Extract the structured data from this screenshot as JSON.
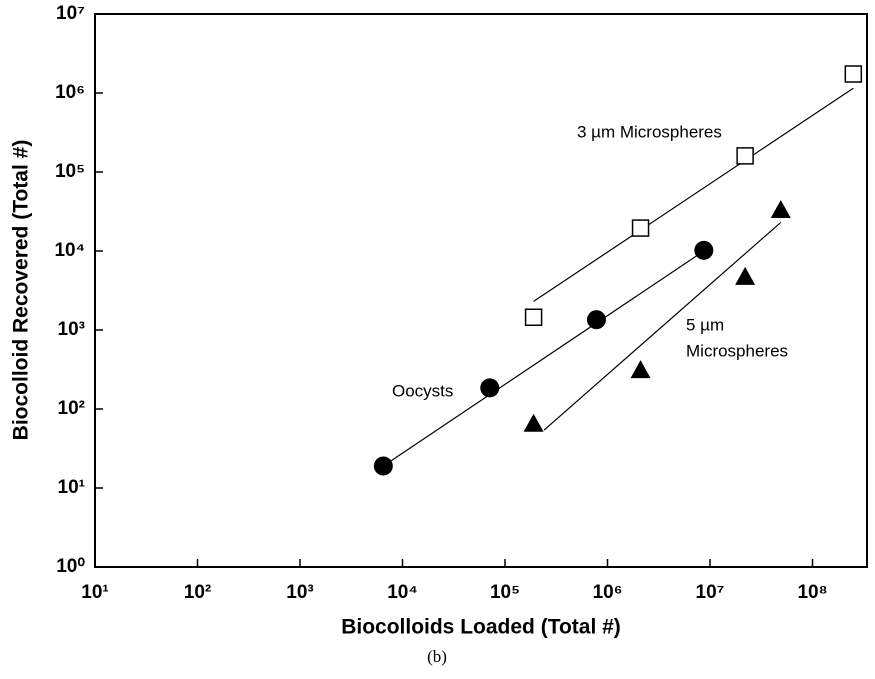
{
  "chart_data": {
    "type": "scatter",
    "xscale": "log",
    "yscale": "log",
    "x_label": "Biocolloids Loaded (Total #)",
    "y_label": "Biocolloid Recovered (Total #)",
    "caption": "(b)",
    "xlim": [
      10,
      340000000
    ],
    "ylim": [
      1,
      10000000
    ],
    "xticks": [
      {
        "value": 10,
        "label": "10¹"
      },
      {
        "value": 100,
        "label": "10²"
      },
      {
        "value": 1000,
        "label": "10³"
      },
      {
        "value": 10000,
        "label": "10⁴"
      },
      {
        "value": 100000,
        "label": "10⁵"
      },
      {
        "value": 1000000,
        "label": "10⁶"
      },
      {
        "value": 10000000,
        "label": "10⁷"
      },
      {
        "value": 100000000,
        "label": "10⁸"
      }
    ],
    "yticks": [
      {
        "value": 1,
        "label": "10⁰"
      },
      {
        "value": 10,
        "label": "10¹"
      },
      {
        "value": 100,
        "label": "10²"
      },
      {
        "value": 1000,
        "label": "10³"
      },
      {
        "value": 10000,
        "label": "10⁴"
      },
      {
        "value": 100000,
        "label": "10⁵"
      },
      {
        "value": 1000000,
        "label": "10⁶"
      },
      {
        "value": 10000000,
        "label": "10⁷"
      }
    ],
    "annotations": [
      "3 µm Microspheres",
      "Oocysts",
      "5 µm",
      "Microspheres"
    ],
    "series": [
      {
        "marker": "square",
        "color": "#000000",
        "x": [
          190000,
          2100000,
          22000000,
          250000000
        ],
        "values": [
          1450,
          19500,
          160000,
          1740000
        ],
        "fit": {
          "x": [
            190000,
            250000000
          ],
          "values": [
            2300,
            1150000
          ]
        }
      },
      {
        "marker": "circle",
        "color": "#000000",
        "x": [
          6500,
          71000,
          780000,
          8700000
        ],
        "values": [
          19,
          185,
          1350,
          10200
        ],
        "fit": {
          "x": [
            6500,
            8700000
          ],
          "values": [
            19,
            10000
          ]
        }
      },
      {
        "marker": "triangle",
        "color": "#000000",
        "x": [
          190000,
          2100000,
          22000000,
          49000000
        ],
        "values": [
          65,
          310,
          4700,
          33000
        ],
        "fit": {
          "x": [
            240000,
            49000000
          ],
          "values": [
            54,
            23000
          ]
        }
      }
    ]
  }
}
